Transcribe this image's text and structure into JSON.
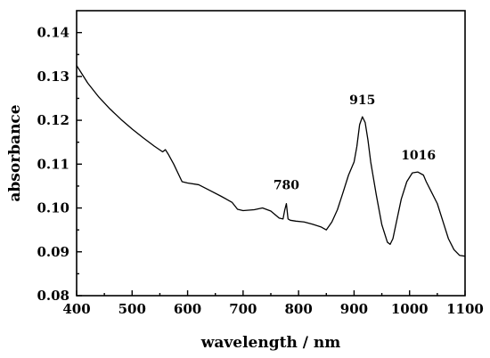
{
  "chart_data": {
    "type": "line",
    "title": "",
    "xlabel": "wavelength / nm",
    "ylabel": "absorbance",
    "xlim": [
      400,
      1100
    ],
    "ylim": [
      0.08,
      0.145
    ],
    "x_ticks": [
      400,
      500,
      600,
      700,
      800,
      900,
      1000,
      1100
    ],
    "y_ticks": [
      0.08,
      0.09,
      0.1,
      0.11,
      0.12,
      0.13,
      0.14
    ],
    "x_tick_labels": [
      "400",
      "500",
      "600",
      "700",
      "800",
      "900",
      "1000",
      "1100"
    ],
    "y_tick_labels": [
      "0.08",
      "0.09",
      "0.10",
      "0.11",
      "0.12",
      "0.13",
      "0.14"
    ],
    "grid": false,
    "legend": "none",
    "series": [
      {
        "color": "#000000",
        "x": [
          400,
          410,
          420,
          440,
          460,
          480,
          500,
          520,
          540,
          555,
          560,
          565,
          575,
          590,
          600,
          620,
          640,
          660,
          680,
          690,
          700,
          720,
          735,
          750,
          765,
          772,
          775,
          778,
          781,
          785,
          795,
          810,
          825,
          840,
          850,
          860,
          870,
          880,
          890,
          900,
          905,
          910,
          915,
          920,
          925,
          930,
          940,
          950,
          960,
          965,
          970,
          975,
          985,
          995,
          1005,
          1015,
          1025,
          1030,
          1040,
          1050,
          1060,
          1070,
          1080,
          1090,
          1100
        ],
        "y": [
          0.1325,
          0.1305,
          0.1285,
          0.1253,
          0.1226,
          0.1202,
          0.118,
          0.116,
          0.1141,
          0.1128,
          0.1133,
          0.1123,
          0.11,
          0.106,
          0.1057,
          0.1053,
          0.104,
          0.1027,
          0.1013,
          0.0997,
          0.0994,
          0.0996,
          0.1,
          0.0993,
          0.0977,
          0.0975,
          0.0995,
          0.101,
          0.0975,
          0.0972,
          0.097,
          0.0968,
          0.0963,
          0.0957,
          0.095,
          0.0968,
          0.0996,
          0.1035,
          0.1075,
          0.1105,
          0.114,
          0.119,
          0.1208,
          0.1195,
          0.1155,
          0.1105,
          0.103,
          0.0962,
          0.0922,
          0.0917,
          0.093,
          0.096,
          0.102,
          0.106,
          0.108,
          0.1082,
          0.1075,
          0.106,
          0.1035,
          0.101,
          0.097,
          0.093,
          0.0905,
          0.0892,
          0.089
        ]
      }
    ],
    "annotations": [
      {
        "text": "780",
        "x": 778,
        "y": 0.101
      },
      {
        "text": "915",
        "x": 915,
        "y": 0.1208
      },
      {
        "text": "1016",
        "x": 1016,
        "y": 0.1082
      }
    ]
  }
}
